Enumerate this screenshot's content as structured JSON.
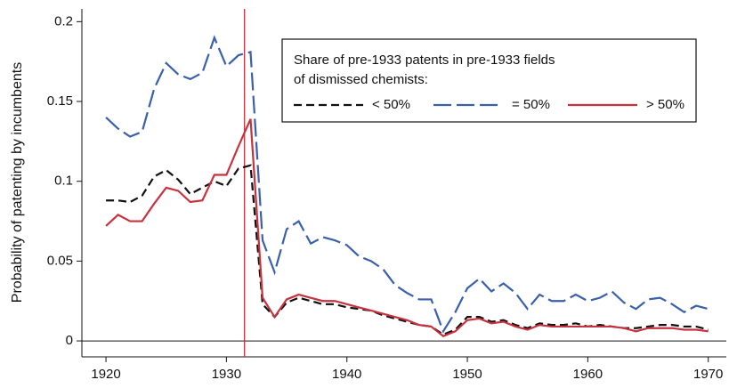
{
  "chart_data": {
    "type": "line",
    "ylabel": "Probability of patenting by incumbents",
    "legend_title": [
      "Share of pre-1933 patents in pre-1933 fields",
      "of dismissed chemists:"
    ],
    "x": [
      1920,
      1921,
      1922,
      1923,
      1924,
      1925,
      1926,
      1927,
      1928,
      1929,
      1930,
      1931,
      1932,
      1933,
      1934,
      1935,
      1936,
      1937,
      1938,
      1939,
      1940,
      1941,
      1942,
      1943,
      1944,
      1945,
      1946,
      1947,
      1948,
      1949,
      1950,
      1951,
      1952,
      1953,
      1954,
      1955,
      1956,
      1957,
      1958,
      1959,
      1960,
      1961,
      1962,
      1963,
      1964,
      1965,
      1966,
      1967,
      1968,
      1969,
      1970
    ],
    "series": [
      {
        "name": "< 50%",
        "color": "#111111",
        "dash": "9,5",
        "values": [
          0.088,
          0.088,
          0.087,
          0.091,
          0.103,
          0.107,
          0.101,
          0.092,
          0.096,
          0.1,
          0.097,
          0.108,
          0.11,
          0.023,
          0.015,
          0.024,
          0.027,
          0.025,
          0.023,
          0.023,
          0.021,
          0.02,
          0.019,
          0.016,
          0.014,
          0.012,
          0.01,
          0.009,
          0.004,
          0.007,
          0.015,
          0.015,
          0.012,
          0.013,
          0.01,
          0.008,
          0.011,
          0.01,
          0.01,
          0.011,
          0.009,
          0.01,
          0.009,
          0.008,
          0.008,
          0.009,
          0.01,
          0.01,
          0.009,
          0.009,
          0.007
        ]
      },
      {
        "name": "= 50%",
        "color": "#3a5fab",
        "dash": "20,6",
        "values": [
          0.14,
          0.133,
          0.128,
          0.131,
          0.158,
          0.174,
          0.167,
          0.164,
          0.168,
          0.19,
          0.172,
          0.179,
          0.181,
          0.063,
          0.043,
          0.07,
          0.075,
          0.061,
          0.065,
          0.063,
          0.06,
          0.053,
          0.05,
          0.045,
          0.035,
          0.03,
          0.026,
          0.026,
          0.006,
          0.018,
          0.033,
          0.039,
          0.031,
          0.036,
          0.03,
          0.02,
          0.029,
          0.025,
          0.025,
          0.029,
          0.025,
          0.027,
          0.031,
          0.024,
          0.02,
          0.026,
          0.027,
          0.023,
          0.018,
          0.022,
          0.02
        ]
      },
      {
        "name": "> 50%",
        "color": "#c8323f",
        "dash": "none",
        "values": [
          0.072,
          0.079,
          0.075,
          0.075,
          0.086,
          0.096,
          0.094,
          0.087,
          0.088,
          0.104,
          0.104,
          0.122,
          0.139,
          0.027,
          0.015,
          0.026,
          0.029,
          0.027,
          0.025,
          0.025,
          0.023,
          0.021,
          0.019,
          0.017,
          0.015,
          0.013,
          0.01,
          0.009,
          0.003,
          0.006,
          0.013,
          0.014,
          0.011,
          0.012,
          0.009,
          0.007,
          0.01,
          0.009,
          0.009,
          0.009,
          0.009,
          0.009,
          0.009,
          0.008,
          0.006,
          0.008,
          0.008,
          0.008,
          0.007,
          0.007,
          0.006
        ]
      }
    ],
    "xlim": [
      1918,
      1971.5
    ],
    "ylim": [
      -0.01,
      0.208
    ],
    "xticks": [
      1920,
      1930,
      1940,
      1950,
      1960,
      1970
    ],
    "yticks": [
      0,
      0.05,
      0.1,
      0.15,
      0.2
    ],
    "vline": 1931.5,
    "vline_color": "#c8323f",
    "hline": 0
  }
}
